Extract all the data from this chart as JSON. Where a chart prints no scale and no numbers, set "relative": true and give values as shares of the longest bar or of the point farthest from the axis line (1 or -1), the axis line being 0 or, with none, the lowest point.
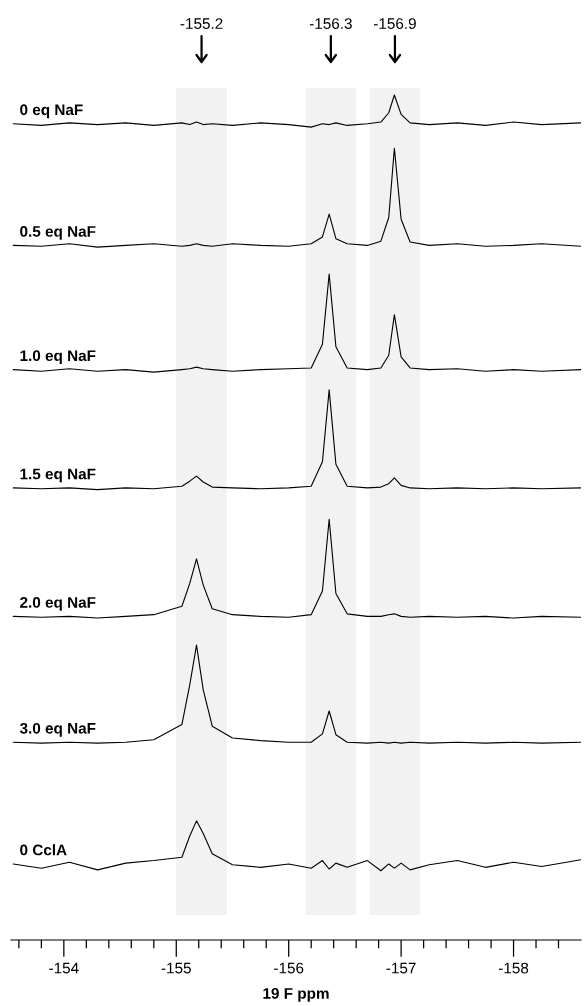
{
  "chart_data": {
    "type": "line",
    "relative": true,
    "xlabel": "19 F ppm",
    "xlim": [
      -153.53,
      -158.6
    ],
    "xticks": [
      {
        "value": -153.6,
        "label": null
      },
      {
        "value": -153.8,
        "label": null
      },
      {
        "value": -154,
        "label": "-154"
      },
      {
        "value": -154.2,
        "label": null
      },
      {
        "value": -154.4,
        "label": null
      },
      {
        "value": -154.6,
        "label": null
      },
      {
        "value": -154.8,
        "label": null
      },
      {
        "value": -155,
        "label": "-155"
      },
      {
        "value": -155.2,
        "label": null
      },
      {
        "value": -155.4,
        "label": null
      },
      {
        "value": -155.6,
        "label": null
      },
      {
        "value": -155.8,
        "label": null
      },
      {
        "value": -156,
        "label": "-156"
      },
      {
        "value": -156.2,
        "label": null
      },
      {
        "value": -156.4,
        "label": null
      },
      {
        "value": -156.6,
        "label": null
      },
      {
        "value": -156.8,
        "label": null
      },
      {
        "value": -157,
        "label": "-157"
      },
      {
        "value": -157.2,
        "label": null
      },
      {
        "value": -157.4,
        "label": null
      },
      {
        "value": -157.6,
        "label": null
      },
      {
        "value": -157.8,
        "label": null
      },
      {
        "value": -158,
        "label": "-158"
      },
      {
        "value": -158.2,
        "label": null
      },
      {
        "value": -158.4,
        "label": null
      }
    ],
    "annotations": [
      "-155.2",
      "-156.3",
      "-156.9"
    ],
    "bands": [
      {
        "axis": "x",
        "from": -155.0,
        "to": -155.45,
        "color": "#f2f2f2"
      },
      {
        "axis": "x",
        "from": -156.15,
        "to": -156.6,
        "color": "#f2f2f2"
      },
      {
        "axis": "x",
        "from": -156.72,
        "to": -157.17,
        "color": "#f2f2f2"
      }
    ],
    "x": [
      -153.55,
      -153.8,
      -154.05,
      -154.3,
      -154.55,
      -154.8,
      -155.05,
      -155.12,
      -155.18,
      -155.24,
      -155.32,
      -155.5,
      -155.75,
      -156.0,
      -156.2,
      -156.3,
      -156.36,
      -156.42,
      -156.52,
      -156.7,
      -156.82,
      -156.89,
      -156.94,
      -157.0,
      -157.08,
      -157.25,
      -157.5,
      -157.75,
      -158.0,
      -158.25,
      -158.6
    ],
    "series": [
      {
        "name": "0 eq NaF",
        "color": "#000000",
        "values": [
          0.966,
          0.964,
          0.967,
          0.965,
          0.967,
          0.964,
          0.967,
          0.965,
          0.968,
          0.965,
          0.966,
          0.964,
          0.967,
          0.965,
          0.962,
          0.966,
          0.965,
          0.967,
          0.964,
          0.966,
          0.968,
          0.979,
          1,
          0.977,
          0.967,
          0.965,
          0.967,
          0.964,
          0.968,
          0.965,
          0.967
        ]
      },
      {
        "name": "0.5 eq NaF",
        "color": "#000000",
        "values": [
          0.822,
          0.821,
          0.824,
          0.82,
          0.822,
          0.824,
          0.821,
          0.822,
          0.824,
          0.822,
          0.821,
          0.824,
          0.822,
          0.821,
          0.824,
          0.832,
          0.859,
          0.83,
          0.824,
          0.822,
          0.827,
          0.855,
          0.937,
          0.853,
          0.826,
          0.822,
          0.824,
          0.821,
          0.822,
          0.824,
          0.821
        ]
      },
      {
        "name": "1.0 eq NaF",
        "color": "#000000",
        "values": [
          0.675,
          0.673,
          0.676,
          0.673,
          0.675,
          0.672,
          0.675,
          0.676,
          0.678,
          0.676,
          0.675,
          0.673,
          0.675,
          0.676,
          0.677,
          0.705,
          0.788,
          0.702,
          0.677,
          0.675,
          0.677,
          0.692,
          0.74,
          0.69,
          0.677,
          0.675,
          0.676,
          0.673,
          0.675,
          0.673,
          0.675
        ]
      },
      {
        "name": "1.5 eq NaF",
        "color": "#000000",
        "values": [
          0.535,
          0.534,
          0.535,
          0.533,
          0.535,
          0.534,
          0.537,
          0.543,
          0.549,
          0.542,
          0.536,
          0.535,
          0.534,
          0.535,
          0.537,
          0.566,
          0.651,
          0.563,
          0.537,
          0.535,
          0.536,
          0.54,
          0.547,
          0.538,
          0.535,
          0.534,
          0.535,
          0.534,
          0.535,
          0.534,
          0.535
        ]
      },
      {
        "name": "2.0 eq NaF",
        "color": "#000000",
        "values": [
          0.383,
          0.382,
          0.383,
          0.381,
          0.383,
          0.385,
          0.395,
          0.422,
          0.451,
          0.42,
          0.392,
          0.385,
          0.383,
          0.382,
          0.385,
          0.413,
          0.498,
          0.41,
          0.386,
          0.383,
          0.383,
          0.385,
          0.386,
          0.383,
          0.382,
          0.383,
          0.382,
          0.383,
          0.381,
          0.383,
          0.382
        ]
      },
      {
        "name": "3.0 eq NaF",
        "color": "#000000",
        "values": [
          0.234,
          0.233,
          0.234,
          0.233,
          0.234,
          0.237,
          0.255,
          0.302,
          0.349,
          0.296,
          0.253,
          0.239,
          0.236,
          0.234,
          0.234,
          0.244,
          0.271,
          0.243,
          0.234,
          0.233,
          0.234,
          0.233,
          0.234,
          0.233,
          0.234,
          0.233,
          0.234,
          0.233,
          0.234,
          0.233,
          0.234
        ]
      },
      {
        "name": "0 CclA",
        "color": "#000000",
        "values": [
          0.09,
          0.085,
          0.092,
          0.083,
          0.091,
          0.094,
          0.098,
          0.123,
          0.141,
          0.126,
          0.102,
          0.089,
          0.086,
          0.09,
          0.085,
          0.094,
          0.084,
          0.091,
          0.086,
          0.094,
          0.082,
          0.09,
          0.085,
          0.091,
          0.083,
          0.089,
          0.094,
          0.086,
          0.092,
          0.087,
          0.095
        ]
      }
    ]
  }
}
